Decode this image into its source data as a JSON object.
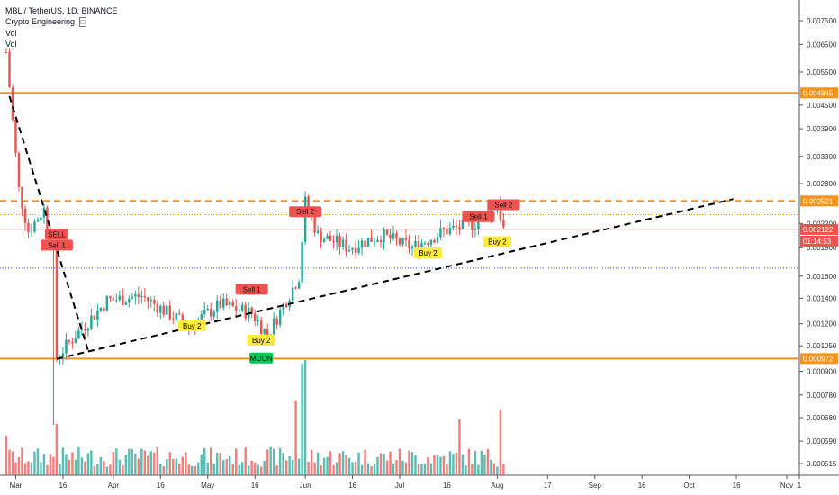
{
  "legend": {
    "symbol": "MBL / TetherUS, 1D, BINANCE",
    "indicator": "Crypto Engineering",
    "indicator_icon": "lock-icon",
    "vol1": "Vol",
    "vol2": "Vol"
  },
  "price_axis": {
    "ticks": [
      "0.007500",
      "0.006500",
      "0.005500",
      "0.004500",
      "0.003900",
      "0.003300",
      "0.002800",
      "0.002200",
      "0.001900",
      "0.001600",
      "0.001400",
      "0.001200",
      "0.001050",
      "0.000900",
      "0.000780",
      "0.000680",
      "0.000590",
      "0.000515"
    ],
    "badges": [
      {
        "text": "0.004845",
        "color": "#f7931a"
      },
      {
        "text": "0.002521",
        "color": "#f7931a"
      },
      {
        "text": "0.002122",
        "color": "#ef5350"
      },
      {
        "text": "01:14:53",
        "color": "#ef5350"
      },
      {
        "text": "0.000972",
        "color": "#f7931a"
      }
    ]
  },
  "time_axis": {
    "ticks": [
      "Mar",
      "16",
      "Apr",
      "16",
      "May",
      "16",
      "Jun",
      "16",
      "Jul",
      "16",
      "Aug",
      "17",
      "Sep",
      "16",
      "Oct",
      "16",
      "Nov",
      "1"
    ]
  },
  "signals": [
    {
      "text": "SELL",
      "kind": "sell"
    },
    {
      "text": "Sell 1",
      "kind": "sell"
    },
    {
      "text": "Sell 1",
      "kind": "sell"
    },
    {
      "text": "Sell 2",
      "kind": "sell"
    },
    {
      "text": "Sell 1",
      "kind": "sell"
    },
    {
      "text": "Sell 2",
      "kind": "sell"
    },
    {
      "text": "Buy 2",
      "kind": "buy"
    },
    {
      "text": "Buy 2",
      "kind": "buy"
    },
    {
      "text": "MOON",
      "kind": "moon"
    },
    {
      "text": "Buy 2",
      "kind": "buy"
    },
    {
      "text": "Buy 2",
      "kind": "buy"
    }
  ],
  "colors": {
    "up": "#26a69a",
    "down": "#ef5350",
    "level": "#f7931a",
    "trend": "#000000",
    "support": "#2962ff",
    "buy": "#ffeb3b",
    "moon": "#00c853"
  },
  "chart_data": {
    "type": "candlestick",
    "symbol": "MBL / TetherUS",
    "interval": "1D",
    "exchange": "BINANCE",
    "scale": "log",
    "ylim": [
      0.00048,
      0.0085
    ],
    "x_range": [
      "2020-02-25",
      "2020-11-05"
    ],
    "last_price": 0.002122,
    "countdown": "01:14:53",
    "horizontal_levels": [
      {
        "price": 0.004845,
        "style": "solid",
        "color": "orange"
      },
      {
        "price": 0.002521,
        "style": "dashed",
        "color": "orange"
      },
      {
        "price": 0.00232,
        "style": "dotted",
        "color": "orange"
      },
      {
        "price": 0.00168,
        "style": "dotted",
        "color": "blue"
      },
      {
        "price": 0.000972,
        "style": "solid",
        "color": "orange"
      }
    ],
    "trendlines": [
      {
        "from": [
          "2020-02-28",
          0.00475
        ],
        "to": [
          "2020-03-24",
          0.00102
        ]
      },
      {
        "from": [
          "2020-03-14",
          0.00097
        ],
        "to": [
          "2020-10-15",
          0.00255
        ]
      }
    ],
    "price_path": [
      {
        "date": "2020-02-27",
        "price": 0.0062
      },
      {
        "date": "2020-03-02",
        "price": 0.0027
      },
      {
        "date": "2020-03-05",
        "price": 0.0021
      },
      {
        "date": "2020-03-10",
        "price": 0.0024
      },
      {
        "date": "2020-03-13",
        "price": 0.00185
      },
      {
        "date": "2020-03-14",
        "price": 0.00098
      },
      {
        "date": "2020-03-20",
        "price": 0.00112
      },
      {
        "date": "2020-03-30",
        "price": 0.00138
      },
      {
        "date": "2020-04-10",
        "price": 0.00142
      },
      {
        "date": "2020-04-25",
        "price": 0.00118
      },
      {
        "date": "2020-05-05",
        "price": 0.00135
      },
      {
        "date": "2020-05-15",
        "price": 0.00128
      },
      {
        "date": "2020-05-20",
        "price": 0.00112
      },
      {
        "date": "2020-05-30",
        "price": 0.0016
      },
      {
        "date": "2020-06-01",
        "price": 0.0025
      },
      {
        "date": "2020-06-05",
        "price": 0.00205
      },
      {
        "date": "2020-06-15",
        "price": 0.0019
      },
      {
        "date": "2020-06-25",
        "price": 0.00205
      },
      {
        "date": "2020-07-05",
        "price": 0.0019
      },
      {
        "date": "2020-07-15",
        "price": 0.0021
      },
      {
        "date": "2020-07-25",
        "price": 0.0022
      },
      {
        "date": "2020-08-01",
        "price": 0.0025
      },
      {
        "date": "2020-08-03",
        "price": 0.002122
      }
    ]
  }
}
